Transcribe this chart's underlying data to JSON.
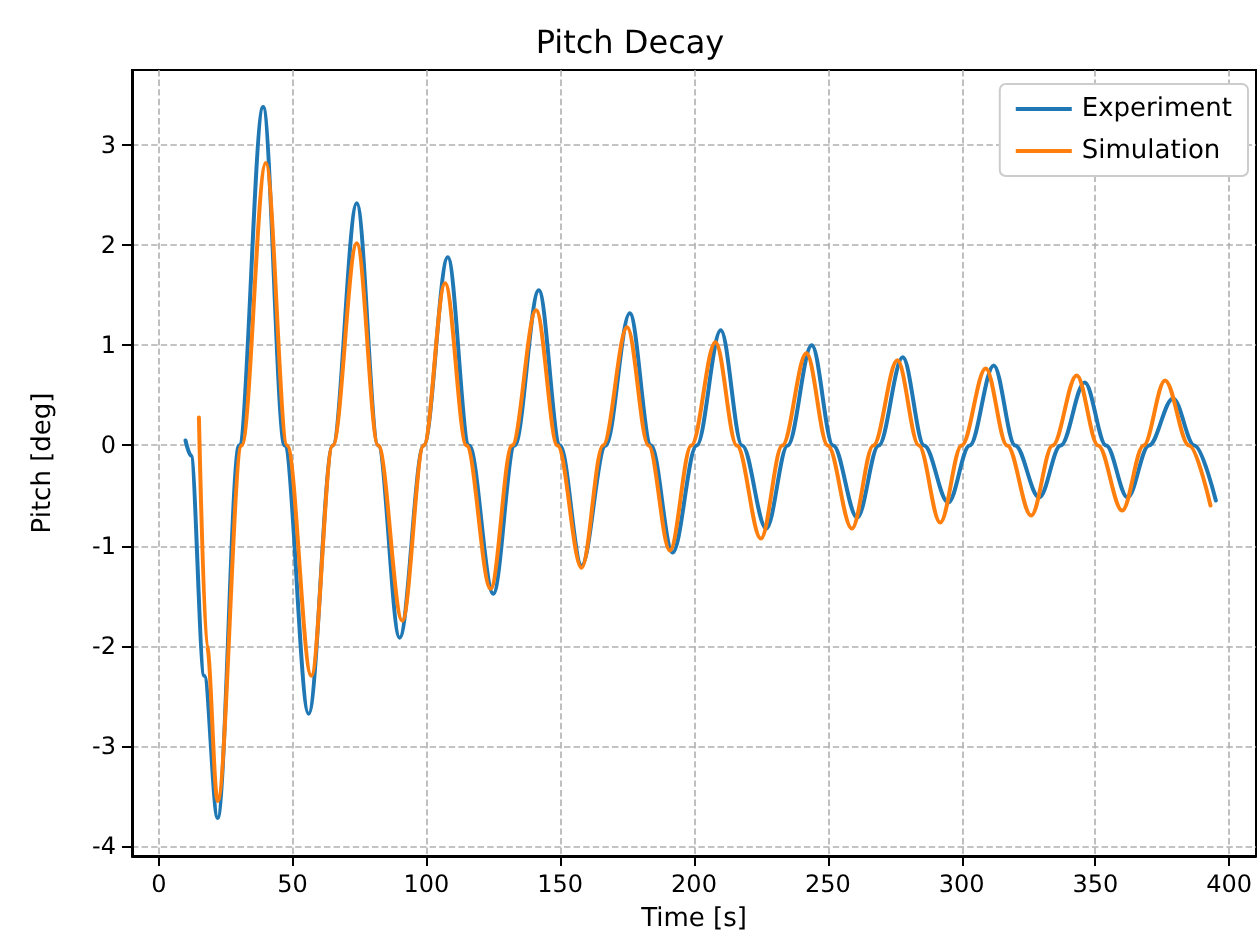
{
  "chart_data": {
    "type": "line",
    "title": "Pitch Decay",
    "xlabel": "Time [s]",
    "ylabel": "Pitch [deg]",
    "xlim": [
      -10,
      410
    ],
    "xticks": [
      0,
      50,
      100,
      150,
      200,
      250,
      300,
      350,
      400
    ],
    "ylim": [
      -4.1,
      3.75
    ],
    "yticks": [
      -4,
      -3,
      -2,
      -1,
      0,
      1,
      2,
      3
    ],
    "grid": true,
    "legend": "top right",
    "marker": "none",
    "line_style": "solid",
    "series": [
      {
        "name": "Experiment",
        "color": "#1f77b4",
        "x": [
          10,
          12,
          17,
          22,
          30,
          39,
          47,
          56,
          65,
          74,
          82,
          90,
          99,
          108,
          116,
          125,
          133,
          142,
          150,
          158,
          167,
          176,
          184,
          192,
          201,
          210,
          218,
          227,
          235,
          244,
          252,
          261,
          269,
          278,
          286,
          295,
          303,
          312,
          320,
          329,
          337,
          346,
          354,
          362,
          370,
          379,
          387,
          395
        ],
        "values": [
          0.05,
          -0.1,
          -2.3,
          -3.72,
          0,
          3.38,
          0,
          -2.68,
          0,
          2.42,
          0,
          -1.92,
          0,
          1.88,
          0,
          -1.48,
          0,
          1.55,
          0,
          -1.2,
          0,
          1.32,
          0,
          -1.07,
          0,
          1.15,
          0,
          -0.83,
          0,
          1.0,
          0,
          -0.72,
          0,
          0.88,
          0,
          -0.57,
          0,
          0.8,
          0,
          -0.52,
          0,
          0.63,
          0,
          -0.52,
          0,
          0.47,
          0,
          -0.55
        ]
      },
      {
        "name": "Simulation",
        "color": "#ff7f0e",
        "x": [
          15,
          18,
          22,
          31,
          40,
          48,
          57,
          65,
          74,
          82,
          91,
          99,
          107,
          115,
          124,
          132,
          141,
          149,
          158,
          166,
          175,
          183,
          191,
          199,
          208,
          216,
          225,
          233,
          242,
          250,
          259,
          267,
          276,
          284,
          292,
          300,
          309,
          317,
          326,
          334,
          343,
          351,
          360,
          368,
          376,
          385,
          393
        ],
        "values": [
          0.28,
          -2.0,
          -3.55,
          0,
          2.82,
          0,
          -2.3,
          0,
          2.02,
          0,
          -1.75,
          0,
          1.62,
          0,
          -1.43,
          0,
          1.35,
          0,
          -1.22,
          0,
          1.18,
          0,
          -1.05,
          0,
          1.03,
          0,
          -0.93,
          0,
          0.92,
          0,
          -0.83,
          0,
          0.85,
          0,
          -0.77,
          0,
          0.77,
          0,
          -0.7,
          0,
          0.7,
          0,
          -0.65,
          0,
          0.65,
          0,
          -0.6
        ]
      }
    ]
  }
}
